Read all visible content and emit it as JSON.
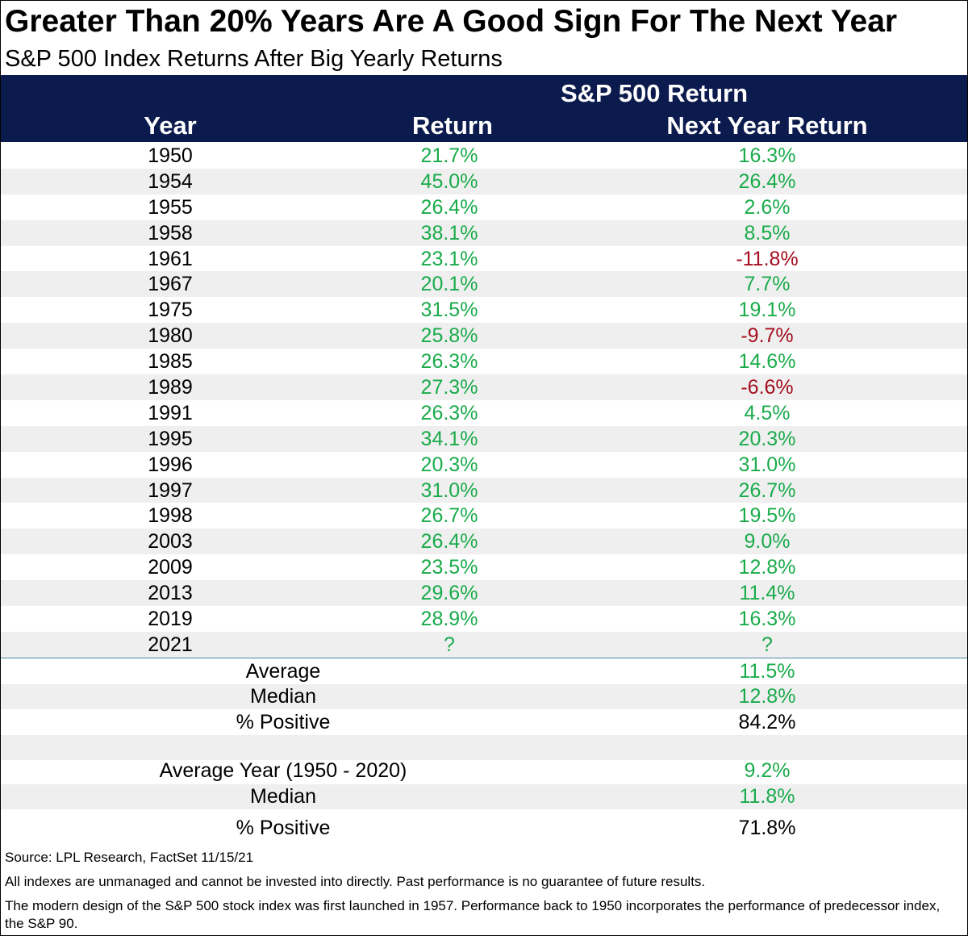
{
  "title": "Greater Than 20% Years Are A Good Sign For The Next Year",
  "subtitle": "S&P 500 Index Returns After Big Yearly Returns",
  "colors": {
    "header_bg": "#0c1b4d",
    "positive": "#1aab4b",
    "negative": "#a50e1f",
    "alt_row": "#efefef"
  },
  "chart_data": {
    "type": "table",
    "group_header": "S&P 500 Return",
    "columns": [
      "Year",
      "Return",
      "Next Year Return"
    ],
    "rows": [
      [
        "1950",
        "21.7%",
        "16.3%"
      ],
      [
        "1954",
        "45.0%",
        "26.4%"
      ],
      [
        "1955",
        "26.4%",
        "2.6%"
      ],
      [
        "1958",
        "38.1%",
        "8.5%"
      ],
      [
        "1961",
        "23.1%",
        "-11.8%"
      ],
      [
        "1967",
        "20.1%",
        "7.7%"
      ],
      [
        "1975",
        "31.5%",
        "19.1%"
      ],
      [
        "1980",
        "25.8%",
        "-9.7%"
      ],
      [
        "1985",
        "26.3%",
        "14.6%"
      ],
      [
        "1989",
        "27.3%",
        "-6.6%"
      ],
      [
        "1991",
        "26.3%",
        "4.5%"
      ],
      [
        "1995",
        "34.1%",
        "20.3%"
      ],
      [
        "1996",
        "20.3%",
        "31.0%"
      ],
      [
        "1997",
        "31.0%",
        "26.7%"
      ],
      [
        "1998",
        "26.7%",
        "19.5%"
      ],
      [
        "2003",
        "26.4%",
        "9.0%"
      ],
      [
        "2009",
        "23.5%",
        "12.8%"
      ],
      [
        "2013",
        "29.6%",
        "11.4%"
      ],
      [
        "2019",
        "28.9%",
        "16.3%"
      ],
      [
        "2021",
        "?",
        "?"
      ]
    ],
    "summary": [
      {
        "label": "Average",
        "value": "11.5%"
      },
      {
        "label": "Median",
        "value": "12.8%"
      },
      {
        "label": "% Positive",
        "value": "84.2%"
      }
    ],
    "baseline": [
      {
        "label": "Average Year (1950 - 2020)",
        "value": "9.2%"
      },
      {
        "label": "Median",
        "value": "11.8%"
      },
      {
        "label": "% Positive",
        "value": "71.8%"
      }
    ]
  },
  "footnotes": {
    "source": "Source: LPL Research, FactSet 11/15/21",
    "disclaimer": "All indexes are unmanaged and cannot be invested into directly. Past performance is no guarantee of future results.",
    "history": "The modern design of the S&P 500 stock index was first launched in 1957. Performance back to 1950 incorporates the performance of predecessor index, the S&P 90."
  }
}
